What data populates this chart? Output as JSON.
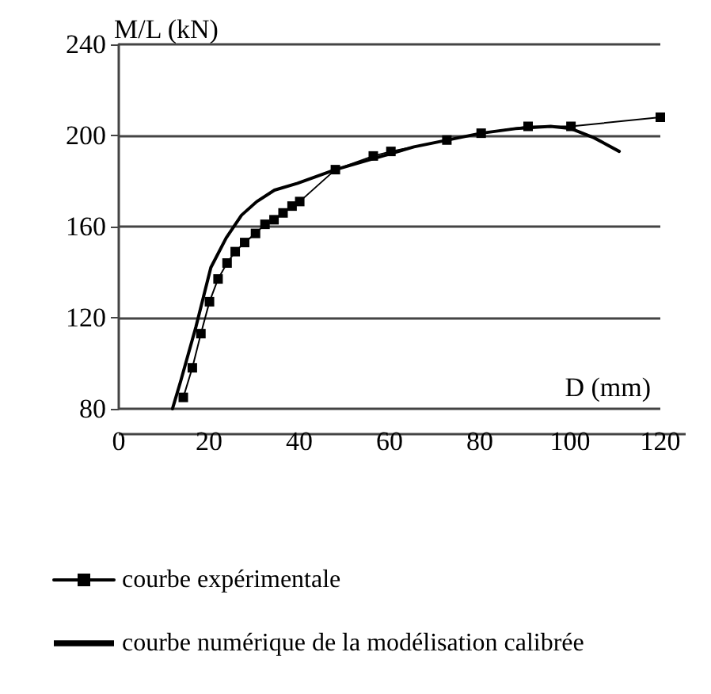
{
  "chart_data": {
    "type": "line",
    "xlabel": "D (mm)",
    "ylabel": "M/L (kN)",
    "xlim": [
      0,
      120
    ],
    "xticks": [
      0,
      20,
      40,
      60,
      80,
      100,
      120
    ],
    "ylim": [
      80,
      240
    ],
    "yticks": [
      80,
      120,
      160,
      200,
      240
    ],
    "grid": "y",
    "legend": "bottom",
    "series": [
      {
        "name": "courbe expérimentale",
        "color": "#000000",
        "marker": "square",
        "x": [
          14.3,
          16.3,
          18.2,
          20.1,
          22.0,
          24.0,
          25.8,
          27.9,
          30.3,
          32.4,
          34.4,
          36.4,
          38.4,
          40.1,
          48,
          56.4,
          60.3,
          72.7,
          80.3,
          90.7,
          100.2,
          120
        ],
        "values": [
          85,
          98,
          113,
          127,
          137,
          144,
          149,
          153,
          157,
          161,
          163,
          166,
          169,
          171,
          185,
          191,
          193,
          198,
          201,
          204,
          204,
          208
        ]
      },
      {
        "name": "courbe numérique de la modélisation calibrée",
        "color": "#000000",
        "marker": "none",
        "x": [
          11.9,
          13.7,
          17.1,
          20.4,
          23.8,
          27.2,
          30.6,
          34.5,
          39.6,
          48,
          65.4,
          80.3,
          87.9,
          95.7,
          100.2,
          105.3,
          110.9
        ],
        "values": [
          80,
          92,
          116,
          142,
          155,
          165,
          171,
          176,
          179,
          185,
          195,
          201,
          203,
          204,
          203,
          199,
          193
        ]
      }
    ]
  }
}
